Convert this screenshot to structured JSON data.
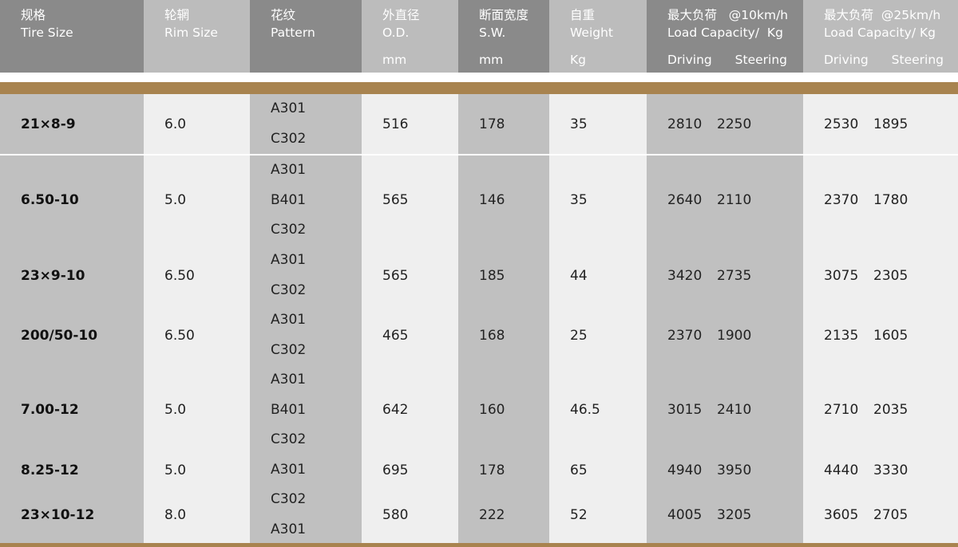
{
  "header": [
    {
      "zh": "规格",
      "en": "Tire Size",
      "unit": ""
    },
    {
      "zh": "轮辋",
      "en": "Rim Size",
      "unit": ""
    },
    {
      "zh": "花纹",
      "en": "Pattern",
      "unit": ""
    },
    {
      "zh": "外直径",
      "en": "O.D.",
      "unit": "mm"
    },
    {
      "zh": "断面宽度",
      "en": "S.W.",
      "unit": "mm"
    },
    {
      "zh": "自重",
      "en": "Weight",
      "unit": "Kg"
    },
    {
      "zh": "最大负荷   @10km/h",
      "en": "Load Capacity/  Kg",
      "driving": "Driving",
      "steering": "Steering"
    },
    {
      "zh": "最大负荷  @25km/h",
      "en": "Load Capacity/ Kg",
      "driving": "Driving",
      "steering": "Steering"
    }
  ],
  "colors": {
    "gold": "#a8834f",
    "header_dark": "#8a8a8a",
    "header_light": "#bcbcbc",
    "cell_dark": "#c0c0c0",
    "cell_light": "#efefef"
  },
  "rows": [
    {
      "size": "21×8-9",
      "rim": "6.0",
      "patterns": [
        "A301",
        "C302"
      ],
      "od": "516",
      "sw": "178",
      "weight": "35",
      "d10": "2810",
      "s10": "2250",
      "d25": "2530",
      "s25": "1895"
    },
    {
      "size": "6.50-10",
      "rim": "5.0",
      "patterns": [
        "A301",
        "B401",
        "C302"
      ],
      "od": "565",
      "sw": "146",
      "weight": "35",
      "d10": "2640",
      "s10": "2110",
      "d25": "2370",
      "s25": "1780"
    },
    {
      "size": "23×9-10",
      "rim": "6.50",
      "patterns": [
        "A301",
        "C302"
      ],
      "od": "565",
      "sw": "185",
      "weight": "44",
      "d10": "3420",
      "s10": "2735",
      "d25": "3075",
      "s25": "2305"
    },
    {
      "size": "200/50-10",
      "rim": "6.50",
      "patterns": [
        "A301",
        "C302"
      ],
      "od": "465",
      "sw": "168",
      "weight": "25",
      "d10": "2370",
      "s10": "1900",
      "d25": "2135",
      "s25": "1605"
    },
    {
      "size": "7.00-12",
      "rim": "5.0",
      "patterns": [
        "A301",
        "B401",
        "C302"
      ],
      "od": "642",
      "sw": "160",
      "weight": "46.5",
      "d10": "3015",
      "s10": "2410",
      "d25": "2710",
      "s25": "2035"
    },
    {
      "size": "8.25-12",
      "rim": "5.0",
      "patterns": [
        "A301"
      ],
      "od": "695",
      "sw": "178",
      "weight": "65",
      "d10": "4940",
      "s10": "3950",
      "d25": "4440",
      "s25": "3330"
    },
    {
      "size": "23×10-12",
      "rim": "8.0",
      "patterns": [
        "C302",
        "A301"
      ],
      "od": "580",
      "sw": "222",
      "weight": "52",
      "d10": "4005",
      "s10": "3205",
      "d25": "3605",
      "s25": "2705"
    }
  ]
}
